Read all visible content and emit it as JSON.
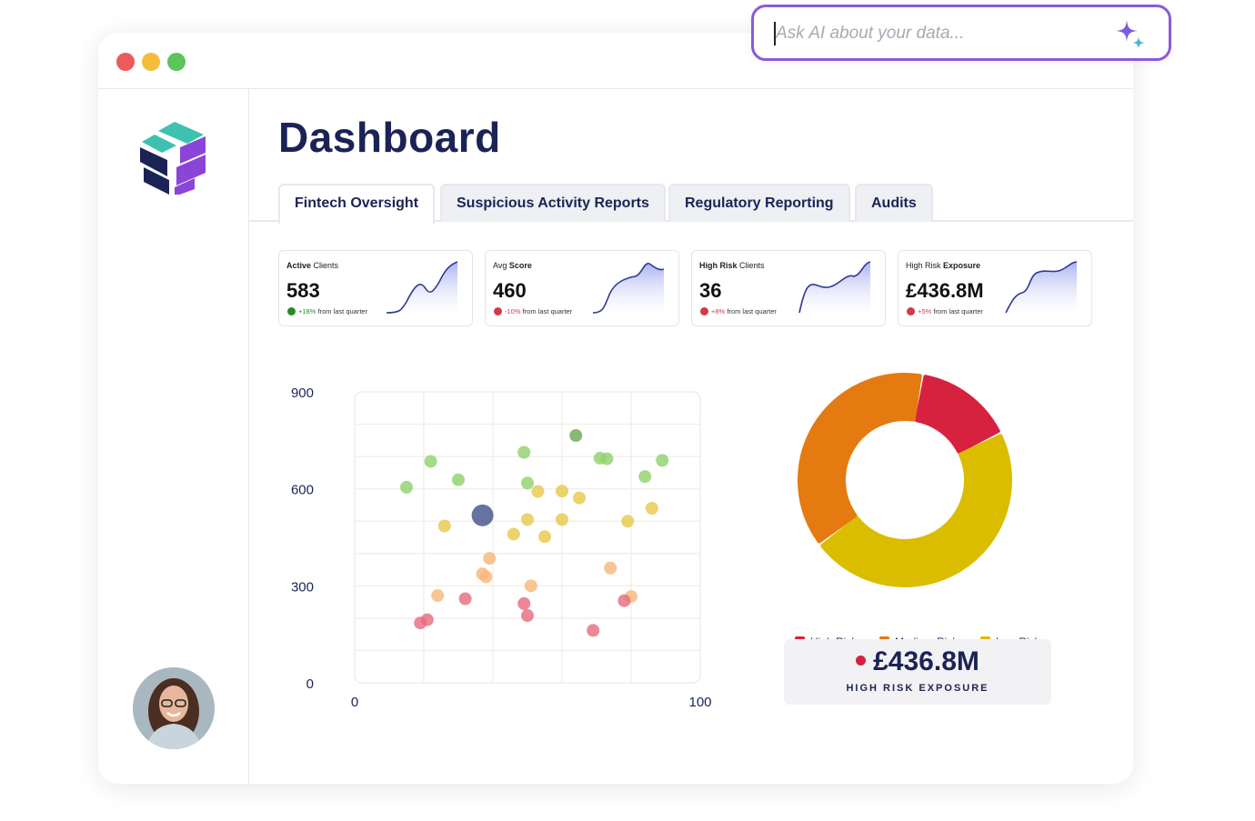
{
  "ai_search": {
    "placeholder": "Ask AI about your data...",
    "icon": "sparkle-icon"
  },
  "window": {
    "controls": [
      "close",
      "minimize",
      "maximize"
    ]
  },
  "page": {
    "title": "Dashboard"
  },
  "tabs": [
    {
      "label": "Fintech Oversight",
      "active": true
    },
    {
      "label": "Suspicious Activity Reports",
      "active": false
    },
    {
      "label": "Regulatory Reporting",
      "active": false
    },
    {
      "label": "Audits",
      "active": false
    }
  ],
  "kpis": [
    {
      "label_prefix": "Active",
      "label_rest": " Clients",
      "bold_first": true,
      "value": "583",
      "change": "+18%",
      "direction": "up",
      "change_suffix": " from last quarter"
    },
    {
      "label_prefix": "Avg ",
      "label_rest": "Score",
      "bold_first": false,
      "value": "460",
      "change": "-10%",
      "direction": "down",
      "change_suffix": " from last quarter"
    },
    {
      "label_prefix": "High Risk",
      "label_rest": " Clients",
      "bold_first": true,
      "value": "36",
      "change": "+8%",
      "direction": "down",
      "change_suffix": " from last quarter"
    },
    {
      "label_prefix": "High Risk ",
      "label_rest": "Exposure",
      "bold_first": false,
      "value": "£436.8M",
      "change": "+5%",
      "direction": "down",
      "change_suffix": " from last quarter"
    }
  ],
  "chart_data": [
    {
      "type": "scatter",
      "xlim": [
        0,
        100
      ],
      "ylim": [
        0,
        900
      ],
      "x_ticks": [
        "0",
        "100"
      ],
      "y_ticks": [
        "0",
        "300",
        "600",
        "900"
      ],
      "grid": true,
      "points": [
        {
          "x": 64,
          "y": 765,
          "c": "#6aa84f"
        },
        {
          "x": 22,
          "y": 685,
          "c": "#8fd16a"
        },
        {
          "x": 49,
          "y": 713,
          "c": "#8fd16a"
        },
        {
          "x": 71,
          "y": 695,
          "c": "#8fd16a"
        },
        {
          "x": 73,
          "y": 693,
          "c": "#8fd16a"
        },
        {
          "x": 89,
          "y": 688,
          "c": "#8fd16a"
        },
        {
          "x": 30,
          "y": 628,
          "c": "#8fd16a"
        },
        {
          "x": 50,
          "y": 618,
          "c": "#8fd16a"
        },
        {
          "x": 84,
          "y": 638,
          "c": "#8fd16a"
        },
        {
          "x": 15,
          "y": 605,
          "c": "#8fd16a"
        },
        {
          "x": 37,
          "y": 518,
          "c": "#4b5a8e",
          "big": true
        },
        {
          "x": 53,
          "y": 592,
          "c": "#e6c84a"
        },
        {
          "x": 60,
          "y": 593,
          "c": "#e6c84a"
        },
        {
          "x": 65,
          "y": 572,
          "c": "#e6c84a"
        },
        {
          "x": 86,
          "y": 540,
          "c": "#e6c84a"
        },
        {
          "x": 26,
          "y": 485,
          "c": "#e6c84a"
        },
        {
          "x": 50,
          "y": 505,
          "c": "#e6c84a"
        },
        {
          "x": 60,
          "y": 505,
          "c": "#e6c84a"
        },
        {
          "x": 79,
          "y": 500,
          "c": "#e6c84a"
        },
        {
          "x": 46,
          "y": 460,
          "c": "#e6c84a"
        },
        {
          "x": 55,
          "y": 452,
          "c": "#e6c84a"
        },
        {
          "x": 39,
          "y": 385,
          "c": "#f6b77a"
        },
        {
          "x": 37,
          "y": 337,
          "c": "#f6b77a"
        },
        {
          "x": 38,
          "y": 328,
          "c": "#f6b77a"
        },
        {
          "x": 51,
          "y": 300,
          "c": "#f6b77a"
        },
        {
          "x": 74,
          "y": 355,
          "c": "#f6b77a"
        },
        {
          "x": 24,
          "y": 270,
          "c": "#f6b77a"
        },
        {
          "x": 80,
          "y": 267,
          "c": "#f6b77a"
        },
        {
          "x": 32,
          "y": 260,
          "c": "#e56a7d"
        },
        {
          "x": 49,
          "y": 245,
          "c": "#e56a7d"
        },
        {
          "x": 78,
          "y": 254,
          "c": "#e56a7d"
        },
        {
          "x": 50,
          "y": 208,
          "c": "#e56a7d"
        },
        {
          "x": 21,
          "y": 195,
          "c": "#e56a7d"
        },
        {
          "x": 19,
          "y": 185,
          "c": "#e56a7d"
        },
        {
          "x": 69,
          "y": 162,
          "c": "#e56a7d"
        }
      ]
    },
    {
      "type": "pie",
      "donut": true,
      "slices": [
        {
          "label": "High Risk",
          "value": 15,
          "color": "#d6213f"
        },
        {
          "label": "Low Risk",
          "value": 47,
          "color": "#dbbd00"
        },
        {
          "label": "Medium Risk",
          "value": 38,
          "color": "#e57a10"
        }
      ],
      "legend": "bottom"
    }
  ],
  "legend": [
    {
      "label": "High Risk",
      "color": "#d6213f"
    },
    {
      "label": "Medium Risk",
      "color": "#e57a10"
    },
    {
      "label": "Low Risk",
      "color": "#dbbd00"
    }
  ],
  "exposure": {
    "value": "£436.8M",
    "label": "HIGH RISK EXPOSURE"
  },
  "colors": {
    "navy": "#1b2356",
    "accent_purple": "#8a5bd6",
    "teal": "#3ec1b0"
  }
}
